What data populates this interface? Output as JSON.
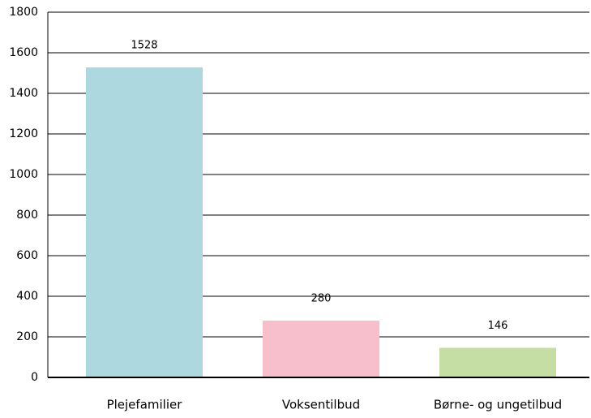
{
  "chart_data": {
    "type": "bar",
    "categories": [
      "Plejefamilier",
      "Voksentilbud",
      "Børne- og ungetilbud"
    ],
    "values": [
      1528,
      280,
      146
    ],
    "colors": [
      "#add8e0",
      "#f7bfcb",
      "#c5dea4"
    ],
    "ylim": [
      0,
      1800
    ],
    "yticks": [
      0,
      200,
      400,
      600,
      800,
      1000,
      1200,
      1400,
      1600,
      1800
    ],
    "grid": true
  }
}
